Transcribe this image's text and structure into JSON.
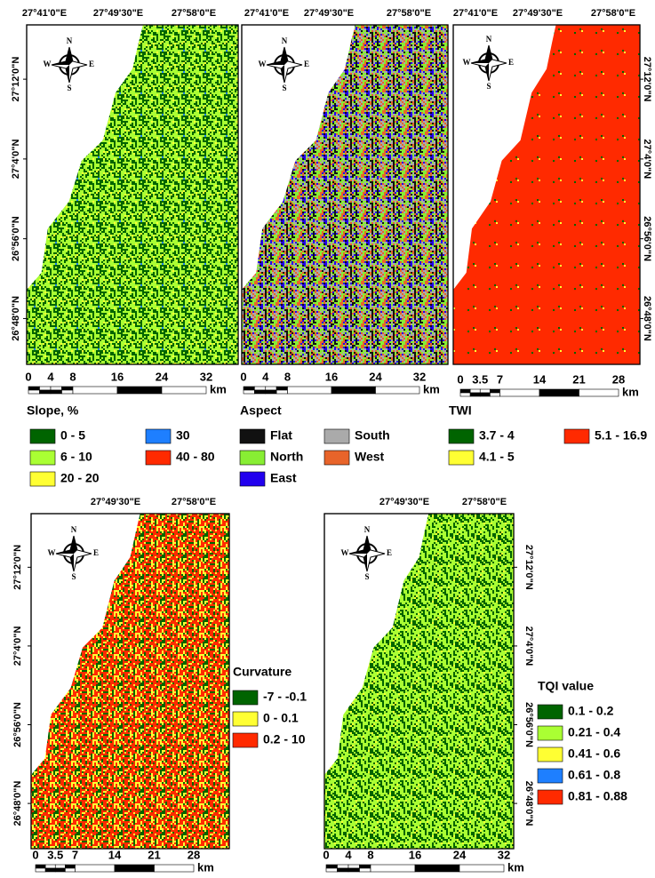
{
  "compass": {
    "n": "N",
    "s": "S",
    "e": "E",
    "w": "W"
  },
  "panels": [
    {
      "lon_labels": [
        "27°41'0\"E",
        "27°49'30\"E",
        "27°58'0\"E"
      ],
      "lat_labels": [
        "27°12'0\"N",
        "27°4'0\"N",
        "26°56'0\"N",
        "26°48'0\"N"
      ],
      "scale": {
        "labels": [
          "0",
          "4",
          "8",
          "16",
          "24",
          "32"
        ],
        "unit": "km"
      },
      "legend": {
        "title": "Slope, %",
        "items": [
          {
            "label": "0 - 5",
            "color": "#006400"
          },
          {
            "label": "6 - 10",
            "color": "#aaff33"
          },
          {
            "label": "20 - 20",
            "color": "#ffff33"
          },
          {
            "label": "30",
            "color": "#1e7fff"
          },
          {
            "label": "40 - 80",
            "color": "#ff2a00"
          }
        ]
      }
    },
    {
      "lon_labels": [
        "27°41'0\"E",
        "27°49'30\"E",
        "27°58'0\"E"
      ],
      "scale": {
        "labels": [
          "0",
          "4",
          "8",
          "16",
          "24",
          "32"
        ],
        "unit": "km"
      },
      "legend": {
        "title": "Aspect",
        "items": [
          {
            "label": "Flat",
            "color": "#111111"
          },
          {
            "label": "North",
            "color": "#88ee33"
          },
          {
            "label": "East",
            "color": "#2200ee"
          },
          {
            "label": "South",
            "color": "#aaaaaa"
          },
          {
            "label": "West",
            "color": "#e8642a"
          }
        ]
      }
    },
    {
      "lon_labels": [
        "27°41'0\"E",
        "27°49'30\"E",
        "27°58'0\"E"
      ],
      "lat_labels": [
        "27°12'0\"N",
        "27°4'0\"N",
        "26°56'0\"N",
        "26°48'0\"N"
      ],
      "scale": {
        "labels": [
          "0",
          "3.5",
          "7",
          "14",
          "21",
          "28"
        ],
        "unit": "km"
      },
      "legend": {
        "title": "TWI",
        "items": [
          {
            "label": "3.7 - 4",
            "color": "#006400"
          },
          {
            "label": "4.1 - 5",
            "color": "#ffff33"
          },
          {
            "label": "5.1 - 16.9",
            "color": "#ff2a00"
          }
        ]
      }
    },
    {
      "lon_labels": [
        "27°49'30\"E",
        "27°58'0\"E"
      ],
      "lat_labels": [
        "27°12'0\"N",
        "27°4'0\"N",
        "26°56'0\"N",
        "26°48'0\"N"
      ],
      "scale": {
        "labels": [
          "0",
          "3.5",
          "7",
          "14",
          "21",
          "28"
        ],
        "unit": "km"
      },
      "legend": {
        "title": "Curvature",
        "items": [
          {
            "label": "-7 - -0.1",
            "color": "#006400"
          },
          {
            "label": "0 - 0.1",
            "color": "#ffff33"
          },
          {
            "label": "0.2 - 10",
            "color": "#ff2a00"
          }
        ]
      }
    },
    {
      "lon_labels": [
        "27°49'30\"E",
        "27°58'0\"E"
      ],
      "lat_labels": [
        "27°12'0\"N",
        "27°4'0\"N",
        "26°56'0\"N",
        "26°48'0\"N"
      ],
      "scale": {
        "labels": [
          "0",
          "4",
          "8",
          "16",
          "24",
          "32"
        ],
        "unit": "km"
      },
      "legend": {
        "title": "TQI value",
        "items": [
          {
            "label": "0.1 - 0.2",
            "color": "#006400"
          },
          {
            "label": "0.21 - 0.4",
            "color": "#aaff33"
          },
          {
            "label": "0.41 - 0.6",
            "color": "#ffff33"
          },
          {
            "label": "0.61 - 0.8",
            "color": "#1e7fff"
          },
          {
            "label": "0.81 - 0.88",
            "color": "#ff2a00"
          }
        ]
      }
    }
  ]
}
